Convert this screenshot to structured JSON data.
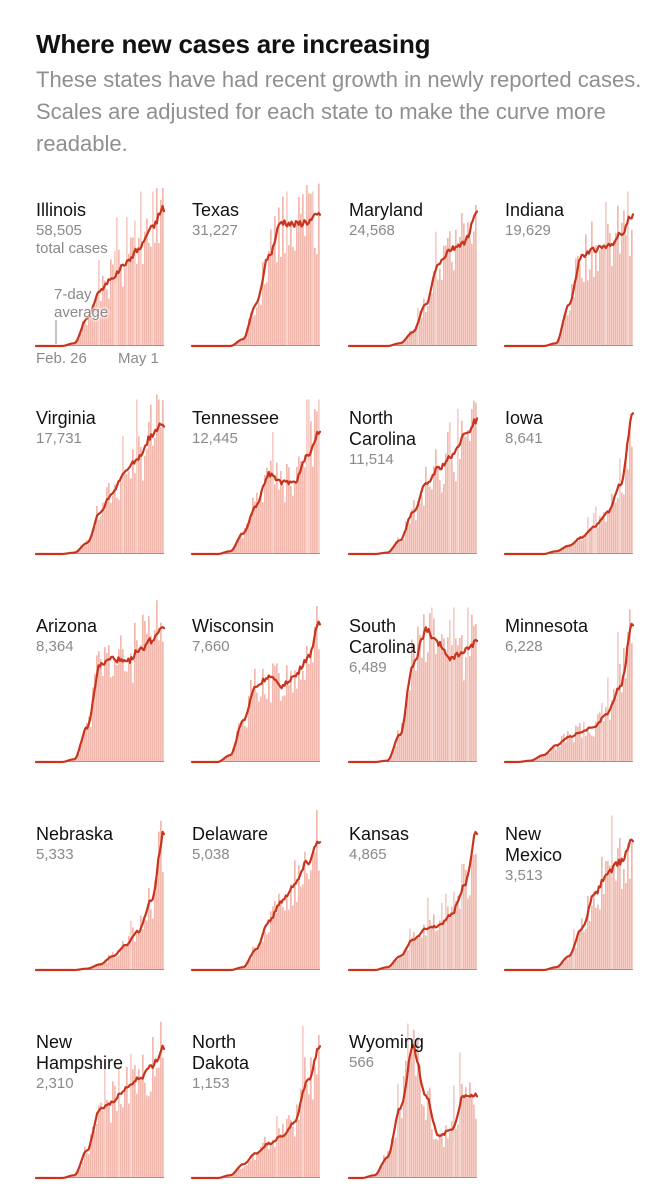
{
  "header": {
    "title": "Where new cases are increasing",
    "subtitle": "These states have had recent growth in newly reported cases. Scales are adjusted for each state to make the curve more readable."
  },
  "colors": {
    "line": "#c8341c",
    "bars": "#f2b8ae",
    "bar_spikes": "#f6cec7",
    "baseline": "#999999"
  },
  "annotations": {
    "total_cases_label": "total cases",
    "average_label": [
      "7-day",
      "average"
    ],
    "x_start_label": "Feb. 26",
    "x_end_label": "May 1"
  },
  "chart_data": {
    "type": "area",
    "description_units": "daily new cases, 7-day average, scaled per state (0-1)",
    "x_range": [
      "Feb. 26",
      "May 1"
    ],
    "sample_points": 11,
    "panels": [
      {
        "state": [
          "Illinois"
        ],
        "total": "58,505",
        "shape": [
          0,
          0,
          0,
          0.02,
          0.2,
          0.4,
          0.5,
          0.6,
          0.7,
          0.85,
          1.0
        ]
      },
      {
        "state": [
          "Texas"
        ],
        "total": "31,227",
        "shape": [
          0,
          0,
          0,
          0,
          0.05,
          0.3,
          0.65,
          0.9,
          0.88,
          0.9,
          0.95
        ]
      },
      {
        "state": [
          "Maryland"
        ],
        "total": "24,568",
        "shape": [
          0,
          0,
          0,
          0,
          0.02,
          0.1,
          0.3,
          0.6,
          0.7,
          0.75,
          0.95
        ]
      },
      {
        "state": [
          "Indiana"
        ],
        "total": "19,629",
        "shape": [
          0,
          0,
          0,
          0,
          0.02,
          0.3,
          0.65,
          0.7,
          0.72,
          0.8,
          0.95
        ]
      },
      {
        "state": [
          "Virginia"
        ],
        "total": "17,731",
        "shape": [
          0,
          0,
          0,
          0.01,
          0.08,
          0.3,
          0.45,
          0.6,
          0.7,
          0.85,
          0.95
        ]
      },
      {
        "state": [
          "Tennessee"
        ],
        "total": "12,445",
        "shape": [
          0,
          0,
          0,
          0.02,
          0.15,
          0.35,
          0.58,
          0.52,
          0.52,
          0.7,
          0.9
        ]
      },
      {
        "state": [
          "North",
          "Carolina"
        ],
        "total": "11,514",
        "shape": [
          0,
          0,
          0,
          0.01,
          0.1,
          0.3,
          0.5,
          0.62,
          0.7,
          0.85,
          0.97
        ]
      },
      {
        "state": [
          "Iowa"
        ],
        "total": "8,641",
        "shape": [
          0,
          0,
          0,
          0,
          0.02,
          0.06,
          0.12,
          0.2,
          0.3,
          0.5,
          1.0
        ]
      },
      {
        "state": [
          "Arizona"
        ],
        "total": "8,364",
        "shape": [
          0,
          0,
          0,
          0.02,
          0.25,
          0.7,
          0.75,
          0.72,
          0.8,
          0.88,
          1.0
        ]
      },
      {
        "state": [
          "Wisconsin"
        ],
        "total": "7,660",
        "shape": [
          0,
          0,
          0,
          0.05,
          0.3,
          0.55,
          0.62,
          0.55,
          0.62,
          0.75,
          1.0
        ]
      },
      {
        "state": [
          "South",
          "Carolina"
        ],
        "total": "6,489",
        "shape": [
          0,
          0,
          0,
          0.01,
          0.2,
          0.7,
          0.95,
          0.85,
          0.75,
          0.8,
          0.88
        ]
      },
      {
        "state": [
          "Minnesota"
        ],
        "total": "6,228",
        "shape": [
          0,
          0,
          0.01,
          0.05,
          0.12,
          0.18,
          0.22,
          0.26,
          0.35,
          0.55,
          1.0
        ]
      },
      {
        "state": [
          "Nebraska"
        ],
        "total": "5,333",
        "shape": [
          0,
          0,
          0,
          0,
          0.01,
          0.04,
          0.1,
          0.18,
          0.28,
          0.5,
          1.0
        ]
      },
      {
        "state": [
          "Delaware"
        ],
        "total": "5,038",
        "shape": [
          0,
          0,
          0,
          0,
          0.02,
          0.15,
          0.35,
          0.5,
          0.62,
          0.78,
          0.95
        ]
      },
      {
        "state": [
          "Kansas"
        ],
        "total": "4,865",
        "shape": [
          0,
          0,
          0,
          0.02,
          0.1,
          0.22,
          0.3,
          0.32,
          0.4,
          0.6,
          1.0
        ]
      },
      {
        "state": [
          "New",
          "Mexico"
        ],
        "total": "3,513",
        "shape": [
          0,
          0,
          0,
          0,
          0.02,
          0.1,
          0.3,
          0.55,
          0.7,
          0.78,
          0.95
        ]
      },
      {
        "state": [
          "New",
          "Hampshire"
        ],
        "total": "2,310",
        "shape": [
          0,
          0,
          0,
          0.02,
          0.2,
          0.5,
          0.55,
          0.65,
          0.72,
          0.8,
          0.95
        ]
      },
      {
        "state": [
          "North",
          "Dakota"
        ],
        "total": "1,153",
        "shape": [
          0,
          0,
          0,
          0.02,
          0.1,
          0.18,
          0.25,
          0.3,
          0.4,
          0.7,
          0.95
        ]
      },
      {
        "state": [
          "Wyoming"
        ],
        "total": "566",
        "shape": [
          0,
          0,
          0.02,
          0.15,
          0.5,
          0.95,
          0.6,
          0.3,
          0.35,
          0.6,
          0.6
        ]
      }
    ]
  }
}
